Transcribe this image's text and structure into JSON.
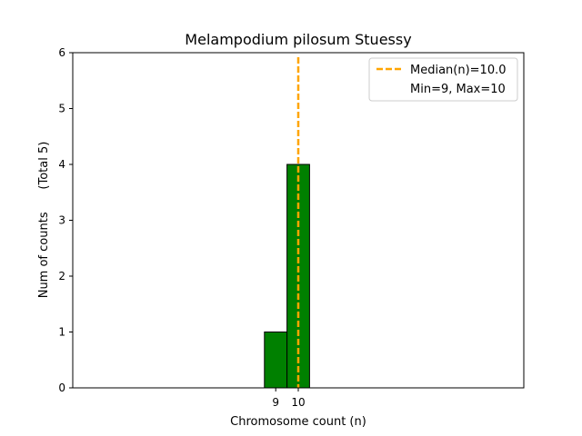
{
  "chart_data": {
    "type": "bar",
    "title": "Melampodium pilosum Stuessy",
    "xlabel": "Chromosome count (n)",
    "ylabel": "Num of counts      (Total 5)",
    "ylim": [
      0,
      6
    ],
    "xlim": [
      0,
      20
    ],
    "yticks": [
      0,
      1,
      2,
      3,
      4,
      5,
      6
    ],
    "xticks": [
      9,
      10
    ],
    "categories": [
      9,
      10
    ],
    "values": [
      1,
      4
    ],
    "bar_color": "#008000",
    "bar_edge_color": "#000000",
    "baseline_extent": [
      0,
      13.5
    ],
    "median": {
      "value": 10.0,
      "label": "Median(n)=10.0",
      "color": "#ffa500"
    },
    "range_label": "Min=9, Max=10",
    "legend_position": "upper right",
    "grid": false
  }
}
